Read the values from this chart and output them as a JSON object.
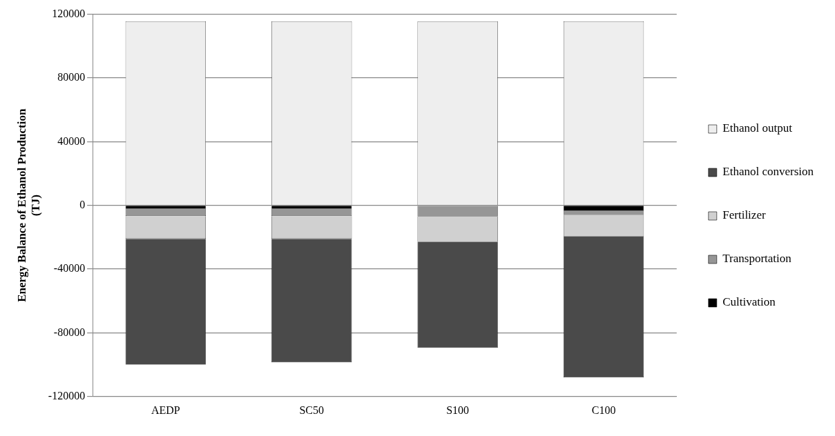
{
  "chart_data": {
    "type": "bar",
    "stacked": true,
    "ylabel": "Energy Balance of Ethanol Production (TJ)",
    "categories": [
      "AEDP",
      "SC50",
      "S100",
      "C100"
    ],
    "series": [
      {
        "name": "Cultivation",
        "color": "#000000",
        "values": [
          -2200,
          -2200,
          0,
          -3500
        ]
      },
      {
        "name": "Transportation",
        "color": "#969696",
        "values": [
          -4500,
          -4500,
          -7000,
          -2500
        ]
      },
      {
        "name": "Fertilizer",
        "color": "#d0d0d0",
        "values": [
          -14300,
          -14300,
          -16000,
          -13500
        ]
      },
      {
        "name": "Ethanol conversion",
        "color": "#4a4a4a",
        "values": [
          -79000,
          -77500,
          -66500,
          -88500
        ]
      },
      {
        "name": "Ethanol output",
        "color": "#eeeeee",
        "values": [
          115500,
          115500,
          115500,
          115500
        ]
      }
    ],
    "ylim": [
      -120000,
      120000
    ],
    "yticks": [
      -120000,
      -80000,
      -40000,
      0,
      40000,
      80000,
      120000
    ],
    "grid": "y",
    "legend": "right"
  }
}
